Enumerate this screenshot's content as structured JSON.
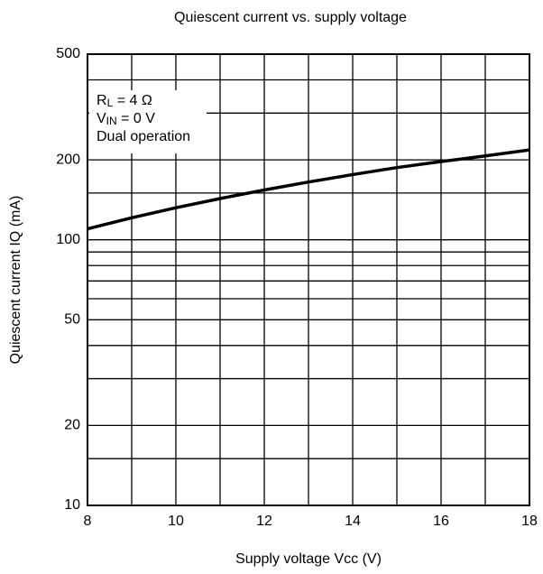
{
  "chart_data": {
    "type": "line",
    "title": "Quiescent current vs. supply voltage",
    "x_label": "Supply voltage Vcc (V)",
    "y_label": "Quiescent current IQ (mA)",
    "x": [
      8,
      9,
      10,
      11,
      12,
      13,
      14,
      15,
      16,
      17,
      18
    ],
    "series": [
      {
        "color": "#000000",
        "values": [
          110,
          121,
          132,
          143,
          154,
          165,
          176,
          187,
          197,
          207,
          218
        ]
      }
    ],
    "xlim": [
      8,
      18
    ],
    "xticks": [
      8,
      10,
      12,
      14,
      16,
      18
    ],
    "minor_xticks": [
      9,
      11,
      13,
      15,
      17
    ],
    "ylim": [
      10,
      500
    ],
    "yticks": [
      10,
      20,
      50,
      100,
      200,
      500
    ],
    "minor_yticks": [
      15,
      30,
      40,
      60,
      70,
      80,
      90,
      150,
      300,
      400
    ],
    "log_y": true,
    "grid": true,
    "annotations": [
      [
        "R",
        "L",
        " = 4 Ω"
      ],
      [
        "V",
        "IN",
        " = 0 V"
      ],
      [
        "Dual operation"
      ]
    ]
  }
}
